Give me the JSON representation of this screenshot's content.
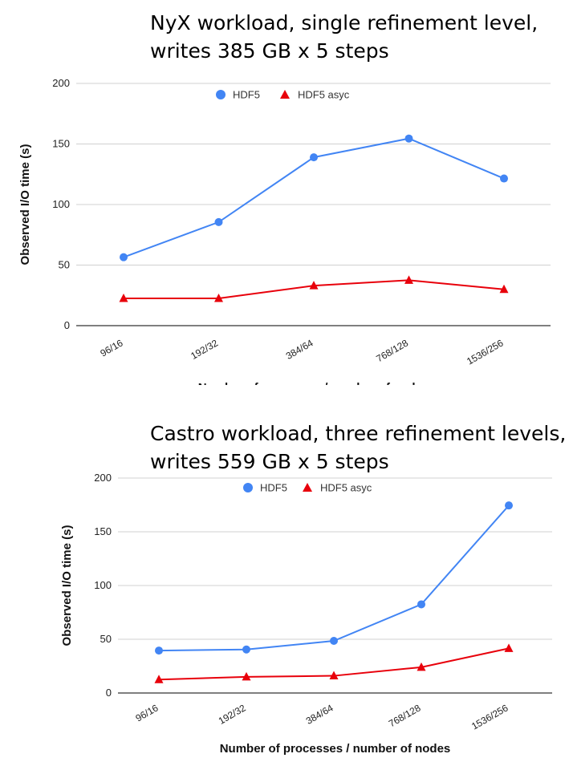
{
  "chart_data": [
    {
      "type": "line",
      "title_lines": [
        "NyX workload, single refinement level,",
        "writes 385 GB x 5 steps"
      ],
      "xlabel": "Number of processes / number of nodes",
      "ylabel": "Observed I/O time (s)",
      "categories": [
        "96/16",
        "192/32",
        "384/64",
        "768/128",
        "1536/256"
      ],
      "ylim": [
        0,
        200
      ],
      "yticks": [
        "0",
        "50",
        "100",
        "150",
        "200"
      ],
      "grid": true,
      "legend_position": "top-center",
      "series": [
        {
          "name": "HDF5",
          "color": "#4285f4",
          "marker": "circle",
          "values": [
            56.5,
            85.5,
            139,
            154.5,
            121.5
          ]
        },
        {
          "name": "HDF5 asyc",
          "color": "#e8000b",
          "marker": "triangle",
          "values": [
            22.5,
            22.5,
            33,
            37.5,
            30
          ]
        }
      ]
    },
    {
      "type": "line",
      "title_lines": [
        "Castro workload, three refinement levels,",
        "writes 559 GB x 5 steps"
      ],
      "xlabel": "Number of processes / number of nodes",
      "ylabel": "Observed I/O time (s)",
      "categories": [
        "96/16",
        "192/32",
        "384/64",
        "768/128",
        "1536/256"
      ],
      "ylim": [
        0,
        200
      ],
      "yticks": [
        "0",
        "50",
        "100",
        "150",
        "200"
      ],
      "grid": true,
      "legend_position": "top-center",
      "series": [
        {
          "name": "HDF5",
          "color": "#4285f4",
          "marker": "circle",
          "values": [
            39.5,
            40.5,
            48.5,
            82.5,
            174.5
          ]
        },
        {
          "name": "HDF5 asyc",
          "color": "#e8000b",
          "marker": "triangle",
          "values": [
            12.5,
            15,
            16,
            24,
            41.5
          ]
        }
      ]
    }
  ]
}
